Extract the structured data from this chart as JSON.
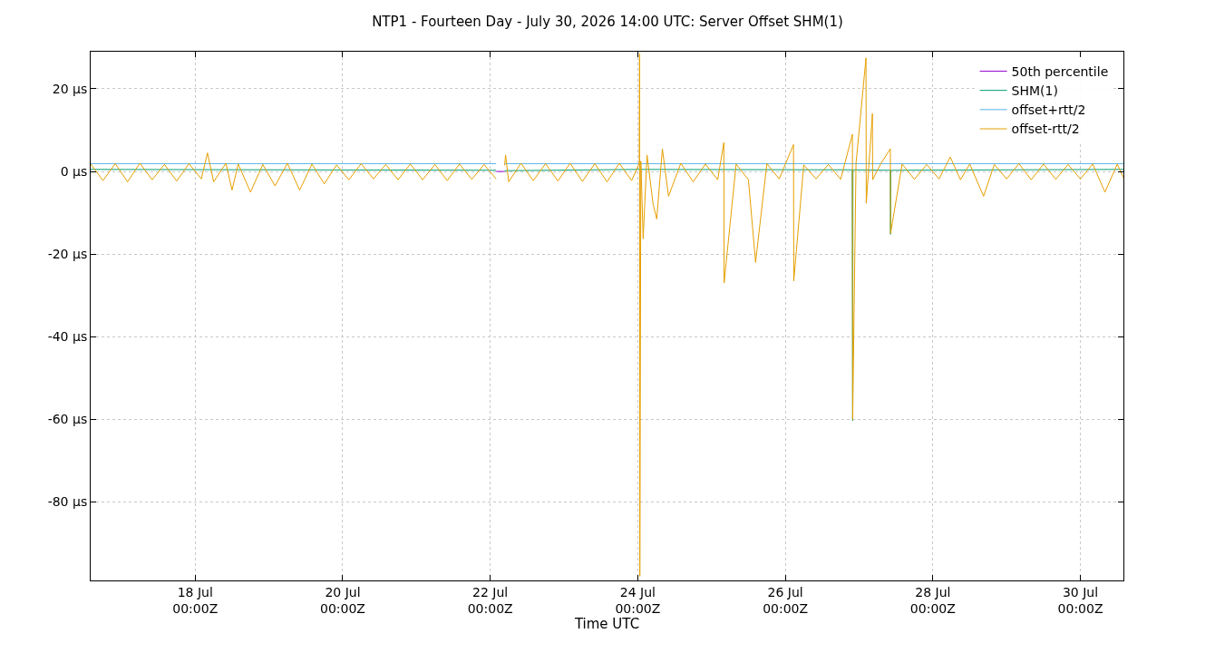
{
  "chart_data": {
    "type": "line",
    "title": "NTP1 - Fourteen Day - July 30, 2026 14:00 UTC: Server Offset SHM(1)",
    "xlabel": "Time UTC",
    "xlim": [
      "2026-07-16T14:00",
      "2026-07-30T14:00"
    ],
    "xticks": [
      {
        "value": "2026-07-18T00:00",
        "label": "18 Jul\n00:00Z"
      },
      {
        "value": "2026-07-20T00:00",
        "label": "20 Jul\n00:00Z"
      },
      {
        "value": "2026-07-22T00:00",
        "label": "22 Jul\n00:00Z"
      },
      {
        "value": "2026-07-24T00:00",
        "label": "24 Jul\n00:00Z"
      },
      {
        "value": "2026-07-26T00:00",
        "label": "26 Jul\n00:00Z"
      },
      {
        "value": "2026-07-28T00:00",
        "label": "28 Jul\n00:00Z"
      },
      {
        "value": "2026-07-30T00:00",
        "label": "30 Jul\n00:00Z"
      }
    ],
    "ylim": [
      -99,
      29
    ],
    "yticks": [
      {
        "value": 20,
        "label": "20 µs"
      },
      {
        "value": 0,
        "label": "0 µs"
      },
      {
        "value": -20,
        "label": "-20 µs"
      },
      {
        "value": -40,
        "label": "-40 µs"
      },
      {
        "value": -60,
        "label": "-60 µs"
      },
      {
        "value": -80,
        "label": "-80 µs"
      }
    ],
    "grid": true,
    "legend": "top right",
    "line_style": "solid",
    "series": [
      {
        "name": "50th percentile",
        "color": "#9400d3",
        "x": [
          "2026-07-22T01:55",
          "2026-07-22T04:40"
        ],
        "values": [
          0,
          0
        ]
      },
      {
        "name": "SHM(1)",
        "color": "#009e73",
        "x": [
          "2026-07-16T14:00",
          "2026-07-22T01:55",
          "2026-07-22T02:00",
          "2026-07-22T04:40",
          "2026-07-24T00:30",
          "2026-07-24T00:35",
          "2026-07-24T00:40",
          "2026-07-26T21:45",
          "2026-07-26T21:55",
          "2026-07-26T22:00",
          "2026-07-27T10:10",
          "2026-07-27T10:15",
          "2026-07-27T10:20",
          "2026-07-30T14:00"
        ],
        "values": [
          0.5,
          0.3,
          null,
          0.2,
          0.5,
          null,
          0.5,
          0.4,
          -60.3,
          0.4,
          0.3,
          -15.2,
          0.3,
          0.5
        ]
      },
      {
        "name": "offset+rtt/2",
        "color": "#56b4e9",
        "x": [
          "2026-07-16T14:00",
          "2026-07-22T01:55",
          "2026-07-22T02:00",
          "2026-07-22T04:40",
          "2026-07-30T14:00"
        ],
        "values": [
          1.9,
          1.9,
          null,
          1.9,
          1.9
        ]
      },
      {
        "name": "offset-rtt/2",
        "color": "#e69f00",
        "x": [
          "2026-07-16T14:00",
          "2026-07-16T18:00",
          "2026-07-16T22:00",
          "2026-07-17T02:00",
          "2026-07-17T06:00",
          "2026-07-17T10:00",
          "2026-07-17T14:00",
          "2026-07-17T18:00",
          "2026-07-17T22:00",
          "2026-07-18T02:00",
          "2026-07-18T04:00",
          "2026-07-18T06:00",
          "2026-07-18T10:00",
          "2026-07-18T12:00",
          "2026-07-18T14:00",
          "2026-07-18T18:00",
          "2026-07-18T22:00",
          "2026-07-19T02:00",
          "2026-07-19T06:00",
          "2026-07-19T10:00",
          "2026-07-19T14:00",
          "2026-07-19T18:00",
          "2026-07-19T22:00",
          "2026-07-20T02:00",
          "2026-07-20T06:00",
          "2026-07-20T10:00",
          "2026-07-20T14:00",
          "2026-07-20T18:00",
          "2026-07-20T22:00",
          "2026-07-21T02:00",
          "2026-07-21T06:00",
          "2026-07-21T10:00",
          "2026-07-21T14:00",
          "2026-07-21T18:00",
          "2026-07-21T22:00",
          "2026-07-22T01:55",
          "2026-07-22T02:00",
          "2026-07-22T04:40",
          "2026-07-22T05:00",
          "2026-07-22T06:00",
          "2026-07-22T10:00",
          "2026-07-22T14:00",
          "2026-07-22T18:00",
          "2026-07-22T22:00",
          "2026-07-23T02:00",
          "2026-07-23T06:00",
          "2026-07-23T10:00",
          "2026-07-23T14:00",
          "2026-07-23T18:00",
          "2026-07-23T22:00",
          "2026-07-24T00:30",
          "2026-07-24T00:35",
          "2026-07-24T00:40",
          "2026-07-24T01:00",
          "2026-07-24T01:45",
          "2026-07-24T03:00",
          "2026-07-24T05:00",
          "2026-07-24T06:10",
          "2026-07-24T08:00",
          "2026-07-24T10:00",
          "2026-07-24T14:00",
          "2026-07-24T18:00",
          "2026-07-24T22:00",
          "2026-07-25T02:00",
          "2026-07-25T04:00",
          "2026-07-25T04:05",
          "2026-07-25T08:00",
          "2026-07-25T12:00",
          "2026-07-25T14:20",
          "2026-07-25T18:00",
          "2026-07-25T22:00",
          "2026-07-26T02:40",
          "2026-07-26T02:45",
          "2026-07-26T06:00",
          "2026-07-26T10:00",
          "2026-07-26T14:00",
          "2026-07-26T18:00",
          "2026-07-26T21:50",
          "2026-07-26T21:55",
          "2026-07-26T23:00",
          "2026-07-27T02:15",
          "2026-07-27T02:20",
          "2026-07-27T04:20",
          "2026-07-27T04:25",
          "2026-07-27T07:00",
          "2026-07-27T10:10",
          "2026-07-27T10:15",
          "2026-07-27T14:00",
          "2026-07-27T18:00",
          "2026-07-27T22:00",
          "2026-07-28T02:00",
          "2026-07-28T05:40",
          "2026-07-28T09:00",
          "2026-07-28T12:00",
          "2026-07-28T16:30",
          "2026-07-28T20:00",
          "2026-07-29T00:00",
          "2026-07-29T04:00",
          "2026-07-29T08:00",
          "2026-07-29T12:00",
          "2026-07-29T16:00",
          "2026-07-29T20:00",
          "2026-07-30T00:00",
          "2026-07-30T04:00",
          "2026-07-30T08:00",
          "2026-07-30T12:00",
          "2026-07-30T14:00"
        ],
        "values": [
          1.8,
          -2.2,
          1.9,
          -2.5,
          2.0,
          -2.0,
          1.7,
          -2.3,
          1.9,
          -1.8,
          4.5,
          -2.5,
          2.0,
          -4.5,
          1.8,
          -5.0,
          1.7,
          -3.5,
          2.0,
          -4.5,
          1.8,
          -3.0,
          1.6,
          -2.0,
          1.9,
          -1.8,
          1.7,
          -2.0,
          1.8,
          -2.0,
          1.7,
          -2.2,
          1.8,
          -1.9,
          1.7,
          -1.8,
          null,
          1.5,
          4.0,
          -2.5,
          2.0,
          -2.2,
          1.9,
          -2.3,
          2.0,
          -2.4,
          1.9,
          -2.5,
          2.0,
          -2.2,
          2.0,
          28.5,
          -98,
          2.5,
          -16.3,
          4.0,
          -8,
          -11.5,
          5.5,
          -6,
          2.0,
          -2.5,
          1.8,
          -2.0,
          7.0,
          -27,
          1.8,
          -2.0,
          -22,
          1.9,
          -1.8,
          6.5,
          -26.5,
          1.6,
          -1.8,
          1.7,
          -1.9,
          9.0,
          -60,
          1.9,
          27.5,
          -7.7,
          14,
          -2.0,
          1.8,
          5.5,
          -15,
          1.8,
          -1.9,
          1.7,
          -1.8,
          3.5,
          -2.0,
          1.8,
          -6.0,
          1.7,
          -1.8,
          1.9,
          -2.0,
          1.8,
          -1.9,
          1.7,
          -1.8,
          1.8,
          -5.0,
          1.8,
          -1.5
        ]
      }
    ]
  }
}
